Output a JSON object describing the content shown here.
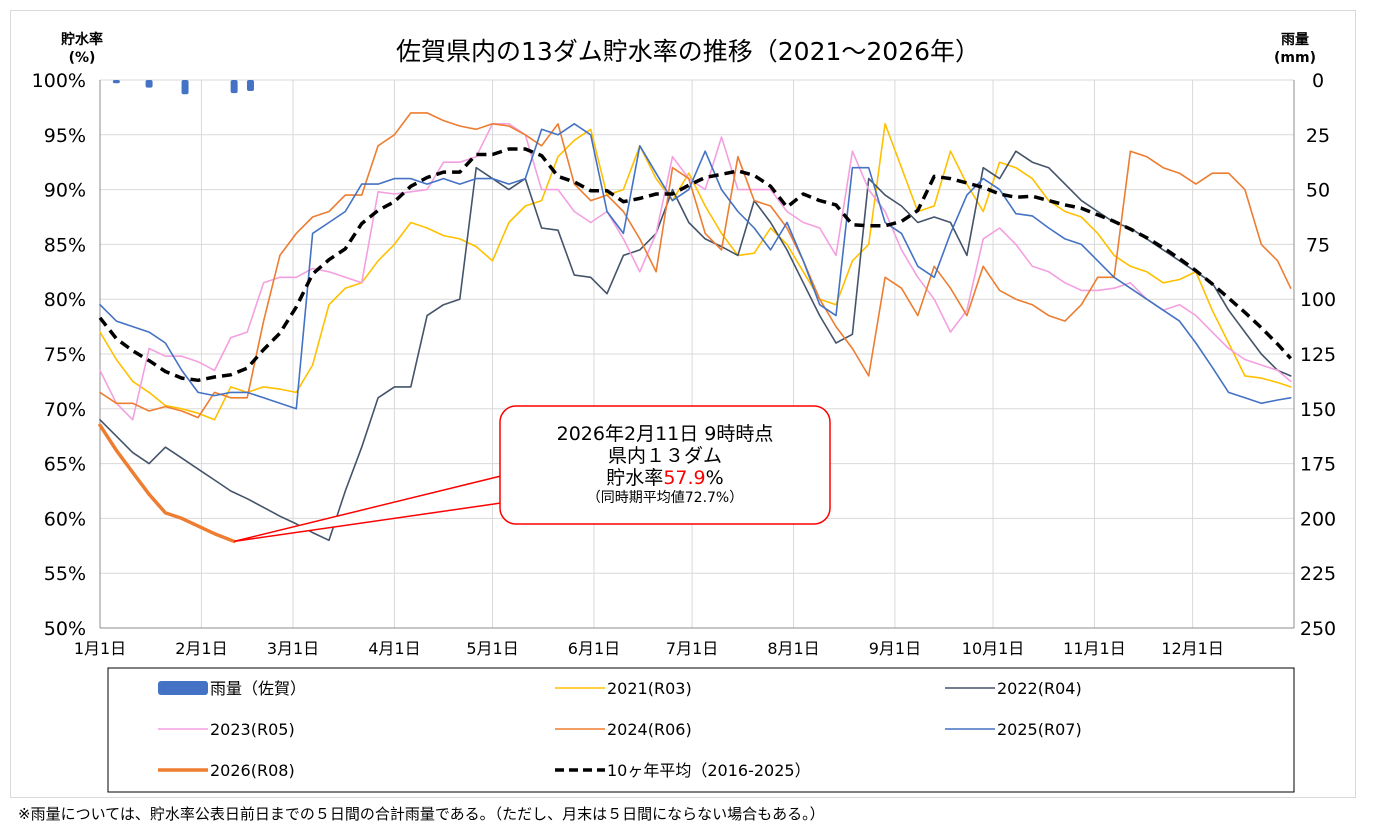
{
  "chart_data": {
    "type": "line",
    "title": "佐賀県内の13ダム貯水率の推移（2021～2026年）",
    "y_left_label": [
      "貯水率",
      "(%)"
    ],
    "y_right_label": [
      "雨量",
      "(mm)"
    ],
    "y_left_ticks": [
      "100%",
      "95%",
      "90%",
      "85%",
      "80%",
      "75%",
      "70%",
      "65%",
      "60%",
      "55%",
      "50%"
    ],
    "y_right_ticks": [
      "0",
      "25",
      "50",
      "75",
      "100",
      "125",
      "150",
      "175",
      "200",
      "225",
      "250"
    ],
    "x_ticks": [
      "1月1日",
      "2月1日",
      "3月1日",
      "4月1日",
      "5月1日",
      "6月1日",
      "7月1日",
      "8月1日",
      "9月1日",
      "10月1日",
      "11月1日",
      "12月1日"
    ],
    "ylim_left": [
      50,
      100
    ],
    "ylim_right": [
      0,
      250
    ],
    "xlim_days": [
      0,
      365
    ],
    "colors": {
      "rain": "#4472c4",
      "2021": "#ffc000",
      "2022": "#44546a",
      "2023": "#f4a0e0",
      "2024": "#ed7d31",
      "2025": "#4472c4",
      "2026": "#ed7d31",
      "avg": "#000000",
      "callout": "#ff0000"
    },
    "rain": {
      "name": "雨量（佐賀）",
      "x": [
        5,
        15,
        26,
        41,
        46
      ],
      "values": [
        1.5,
        3.5,
        6.5,
        6,
        5
      ]
    },
    "series": [
      {
        "name": "2021(R03)",
        "key": "2021",
        "x": [
          0,
          5,
          10,
          15,
          20,
          25,
          30,
          35,
          40,
          45,
          50,
          55,
          60,
          65,
          70,
          75,
          80,
          85,
          90,
          95,
          100,
          105,
          110,
          115,
          120,
          125,
          130,
          135,
          140,
          145,
          150,
          155,
          160,
          165,
          170,
          175,
          180,
          185,
          190,
          195,
          200,
          205,
          210,
          215,
          220,
          225,
          230,
          235,
          240,
          245,
          250,
          255,
          260,
          265,
          270,
          275,
          280,
          285,
          290,
          295,
          300,
          305,
          310,
          315,
          320,
          325,
          330,
          335,
          340,
          345,
          350,
          355,
          360,
          364
        ],
        "values": [
          77,
          74.5,
          72.5,
          71.5,
          70.3,
          70,
          69.6,
          69,
          72,
          71.5,
          72,
          71.8,
          71.5,
          74,
          79.5,
          81,
          81.5,
          83.5,
          85,
          87,
          86.5,
          85.8,
          85.5,
          84.8,
          83.5,
          87,
          88.5,
          89,
          93,
          94.5,
          95.5,
          89.5,
          90,
          94,
          91,
          89,
          91.5,
          88.5,
          86,
          84,
          84.2,
          86.5,
          85,
          82.5,
          80,
          79.5,
          83.5,
          85,
          96,
          92,
          88,
          88.5,
          93.5,
          90.5,
          88,
          92.5,
          92,
          91,
          89,
          88,
          87.5,
          86,
          84,
          83,
          82.5,
          81.5,
          81.8,
          82.5,
          79,
          76,
          73,
          72.8,
          72.4,
          72
        ]
      },
      {
        "name": "2022(R04)",
        "key": "2022",
        "x": [
          0,
          5,
          10,
          15,
          20,
          25,
          30,
          35,
          40,
          45,
          50,
          55,
          60,
          65,
          70,
          75,
          80,
          85,
          90,
          95,
          100,
          105,
          110,
          115,
          120,
          125,
          130,
          135,
          140,
          145,
          150,
          155,
          160,
          165,
          170,
          175,
          180,
          185,
          190,
          195,
          200,
          205,
          210,
          215,
          220,
          225,
          230,
          235,
          240,
          245,
          250,
          255,
          260,
          265,
          270,
          275,
          280,
          285,
          290,
          295,
          300,
          305,
          310,
          315,
          320,
          325,
          330,
          335,
          340,
          345,
          350,
          355,
          360,
          364
        ],
        "values": [
          69,
          67.5,
          66,
          65,
          66.5,
          65.5,
          64.5,
          63.5,
          62.5,
          61.8,
          61,
          60.2,
          59.5,
          58.7,
          58,
          62.5,
          66.5,
          71,
          72,
          72,
          78.5,
          79.5,
          80,
          92,
          91,
          90,
          91,
          86.5,
          86.3,
          82.2,
          82,
          80.5,
          84,
          84.5,
          86,
          90,
          87,
          85.5,
          84.8,
          84,
          89,
          87,
          84.5,
          81.5,
          78.5,
          76,
          76.8,
          91,
          89.5,
          88.5,
          87,
          87.5,
          87,
          84,
          92,
          91,
          93.5,
          92.5,
          92,
          90.5,
          89,
          88,
          87,
          86.5,
          85.5,
          84.5,
          83.5,
          82.5,
          81.5,
          79,
          77,
          75,
          73.5,
          73
        ]
      },
      {
        "name": "2023(R05)",
        "key": "2023",
        "x": [
          0,
          5,
          10,
          15,
          20,
          25,
          30,
          35,
          40,
          45,
          50,
          55,
          60,
          65,
          70,
          75,
          80,
          85,
          90,
          95,
          100,
          105,
          110,
          115,
          120,
          125,
          130,
          135,
          140,
          145,
          150,
          155,
          160,
          165,
          170,
          175,
          180,
          185,
          190,
          195,
          200,
          205,
          210,
          215,
          220,
          225,
          230,
          235,
          240,
          245,
          250,
          255,
          260,
          265,
          270,
          275,
          280,
          285,
          290,
          295,
          300,
          305,
          310,
          315,
          320,
          325,
          330,
          335,
          340,
          345,
          350,
          355,
          360,
          364
        ],
        "values": [
          73.5,
          70.5,
          69,
          75.5,
          74.8,
          74.8,
          74.3,
          73.5,
          76.5,
          77,
          81.5,
          82,
          82,
          82.8,
          82.5,
          82,
          81.5,
          89.8,
          89.6,
          89.8,
          90,
          92.5,
          92.5,
          93,
          96,
          96,
          95,
          90,
          90,
          88,
          87,
          88,
          85.5,
          82.5,
          86,
          93,
          91,
          90,
          94.8,
          90,
          90,
          90,
          88,
          87,
          86.5,
          84,
          93.5,
          90,
          88,
          84.5,
          82,
          80,
          77,
          79,
          85.5,
          86.5,
          85,
          83,
          82.5,
          81.5,
          80.8,
          80.8,
          81,
          81.5,
          80,
          79,
          79.5,
          78.5,
          77,
          75.5,
          74.5,
          74,
          73.5,
          72.5
        ]
      },
      {
        "name": "2024(R06)",
        "key": "2024",
        "x": [
          0,
          5,
          10,
          15,
          20,
          25,
          30,
          35,
          40,
          45,
          50,
          55,
          60,
          65,
          70,
          75,
          80,
          85,
          90,
          95,
          100,
          105,
          110,
          115,
          120,
          125,
          130,
          135,
          140,
          145,
          150,
          155,
          160,
          165,
          170,
          175,
          180,
          185,
          190,
          195,
          200,
          205,
          210,
          215,
          220,
          225,
          230,
          235,
          240,
          245,
          250,
          255,
          260,
          265,
          270,
          275,
          280,
          285,
          290,
          295,
          300,
          305,
          310,
          315,
          320,
          325,
          330,
          335,
          340,
          345,
          350,
          355,
          360,
          364
        ],
        "values": [
          71.5,
          70.5,
          70.5,
          69.8,
          70.2,
          69.8,
          69.2,
          71.5,
          71,
          71,
          78,
          84,
          86,
          87.5,
          88,
          89.5,
          89.5,
          94,
          95,
          97,
          97,
          96.3,
          95.8,
          95.5,
          96,
          95.8,
          95,
          94,
          96,
          90.5,
          89,
          89.5,
          88,
          85.5,
          82.5,
          92,
          91,
          86,
          84.5,
          93,
          89,
          88.5,
          86.5,
          83.5,
          80,
          77.5,
          75.5,
          73,
          82,
          81,
          78.5,
          83,
          81,
          78.5,
          83,
          80.8,
          80,
          79.5,
          78.5,
          78,
          79.5,
          82,
          82,
          93.5,
          93,
          92,
          91.5,
          90.5,
          91.5,
          91.5,
          90,
          85,
          83.5,
          81
        ]
      },
      {
        "name": "2025(R07)",
        "key": "2025",
        "x": [
          0,
          5,
          10,
          15,
          20,
          25,
          30,
          35,
          40,
          45,
          50,
          55,
          60,
          65,
          70,
          75,
          80,
          85,
          90,
          95,
          100,
          105,
          110,
          115,
          120,
          125,
          130,
          135,
          140,
          145,
          150,
          155,
          160,
          165,
          170,
          175,
          180,
          185,
          190,
          195,
          200,
          205,
          210,
          215,
          220,
          225,
          230,
          235,
          240,
          245,
          250,
          255,
          260,
          265,
          270,
          275,
          280,
          285,
          290,
          295,
          300,
          305,
          310,
          315,
          320,
          325,
          330,
          335,
          340,
          345,
          350,
          355,
          360,
          364
        ],
        "values": [
          79.5,
          78,
          77.5,
          77,
          76,
          73.5,
          71.5,
          71.2,
          71.5,
          71.5,
          71,
          70.5,
          70,
          86,
          87,
          88,
          90.5,
          90.5,
          91,
          91,
          90.5,
          91,
          90.5,
          91,
          91,
          90.5,
          91,
          95.5,
          95,
          96,
          95,
          88,
          86,
          94,
          91.5,
          89,
          90,
          93.5,
          90,
          88,
          86.5,
          84.5,
          87,
          83.5,
          79.5,
          78.5,
          92,
          92,
          87,
          86,
          83,
          82,
          86,
          89.5,
          91,
          90,
          87.8,
          87.6,
          86.5,
          85.5,
          85,
          83.5,
          82,
          81,
          80,
          79,
          78,
          76,
          73.8,
          71.5,
          71,
          70.5,
          70.8,
          71
        ]
      },
      {
        "name": "10ヶ年平均（2016-2025）",
        "key": "avg",
        "x": [
          0,
          5,
          10,
          15,
          20,
          25,
          30,
          35,
          40,
          45,
          50,
          55,
          60,
          65,
          70,
          75,
          80,
          85,
          90,
          95,
          100,
          105,
          110,
          115,
          120,
          125,
          130,
          135,
          140,
          145,
          150,
          155,
          160,
          165,
          170,
          175,
          180,
          185,
          190,
          195,
          200,
          205,
          210,
          215,
          220,
          225,
          230,
          235,
          240,
          245,
          250,
          255,
          260,
          265,
          270,
          275,
          280,
          285,
          290,
          295,
          300,
          305,
          310,
          315,
          320,
          325,
          330,
          335,
          340,
          345,
          350,
          355,
          360,
          364
        ],
        "values": [
          78.3,
          76.4,
          75.3,
          74.4,
          73.4,
          72.8,
          72.6,
          72.9,
          73.1,
          73.7,
          75.4,
          76.9,
          79.3,
          82.3,
          83.6,
          84.6,
          86.9,
          88.1,
          88.9,
          90.3,
          91.1,
          91.6,
          91.6,
          93.2,
          93.2,
          93.7,
          93.7,
          93.1,
          91.2,
          90.7,
          89.9,
          89.9,
          88.9,
          89.2,
          89.6,
          89.6,
          90.4,
          91.1,
          91.4,
          91.7,
          91.3,
          90.3,
          88.4,
          89.6,
          89.0,
          88.6,
          86.8,
          86.7,
          86.7,
          87.1,
          88.1,
          91.2,
          91.0,
          90.6,
          90.2,
          89.6,
          89.3,
          89.4,
          89.0,
          88.6,
          88.3,
          87.7,
          87.1,
          86.4,
          85.6,
          84.7,
          83.7,
          82.6,
          81.4,
          80.1,
          78.8,
          77.4,
          75.9,
          74.6
        ]
      },
      {
        "name": "2026(R08)",
        "key": "2026",
        "x": [
          0,
          5,
          10,
          15,
          20,
          25,
          30,
          35,
          41
        ],
        "values": [
          68.5,
          66.2,
          64.2,
          62.2,
          60.5,
          60,
          59.3,
          58.6,
          57.9
        ]
      }
    ],
    "callout": {
      "line1": "2026年2月11日 9時時点",
      "line2": "県内１３ダム",
      "line3_prefix": "貯水率",
      "line3_value": "57.9",
      "line3_suffix": "%",
      "line4": "（同時期平均値72.7%）",
      "point_x": 41,
      "point_y": 57.9
    },
    "legend_order": [
      "rain",
      "2021",
      "2022",
      "2023",
      "2024",
      "2025",
      "2026",
      "avg"
    ]
  },
  "footnote": "※雨量については、貯水率公表日前日までの５日間の合計雨量である。（ただし、月末は５日間にならない場合もある。）"
}
